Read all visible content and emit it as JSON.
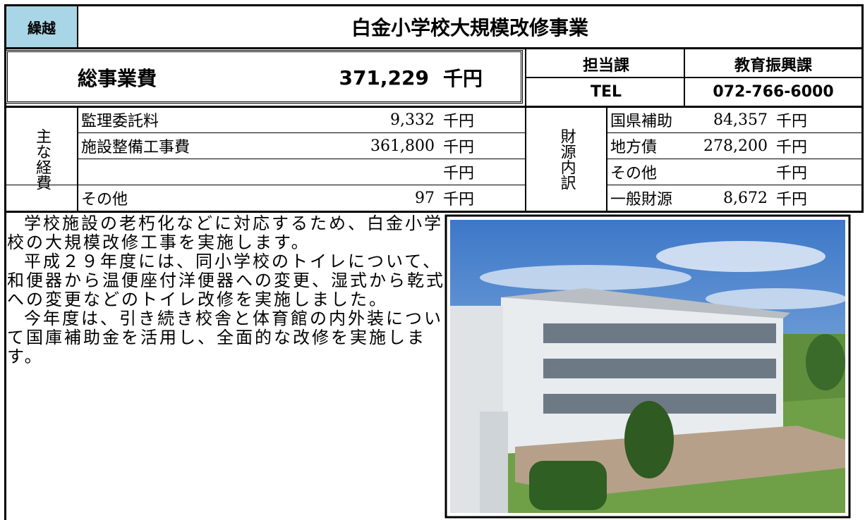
{
  "header": {
    "tag": "繰越",
    "title": "白金小学校大規模改修事業"
  },
  "total": {
    "label": "総事業費",
    "amount": "371,229",
    "unit": "千円"
  },
  "contact": {
    "dept_label": "担当課",
    "dept": "教育振興課",
    "tel_label": "TEL",
    "tel": "072-766-6000"
  },
  "expenses": {
    "label": "主な経費",
    "rows": [
      {
        "item": "監理委託料",
        "amount": "9,332",
        "unit": "千円"
      },
      {
        "item": "施設整備工事費",
        "amount": "361,800",
        "unit": "千円"
      },
      {
        "unit": "千円"
      },
      {
        "item": "その他",
        "amount": "97",
        "unit": "千円"
      }
    ]
  },
  "funding": {
    "label": "財源内訳",
    "rows": [
      {
        "item": "国県補助",
        "amount": "84,357",
        "unit": "千円"
      },
      {
        "item": "地方債",
        "amount": "278,200",
        "unit": "千円"
      },
      {
        "item": "その他",
        "unit": "千円"
      },
      {
        "item": "一般財源",
        "amount": "8,672",
        "unit": "千円"
      }
    ]
  },
  "body": {
    "paragraphs": [
      "学校施設の老朽化などに対応するため、白金小学校の大規模改修工事を実施します。",
      "平成２９年度には、同小学校のトイレについて、和便器から温便座付洋便器への変更、湿式から乾式への変更などのトイレ改修を実施しました。",
      "今年度は、引き続き校舎と体育館の内外装について国庫補助金を活用し、全面的な改修を実施します。"
    ]
  }
}
